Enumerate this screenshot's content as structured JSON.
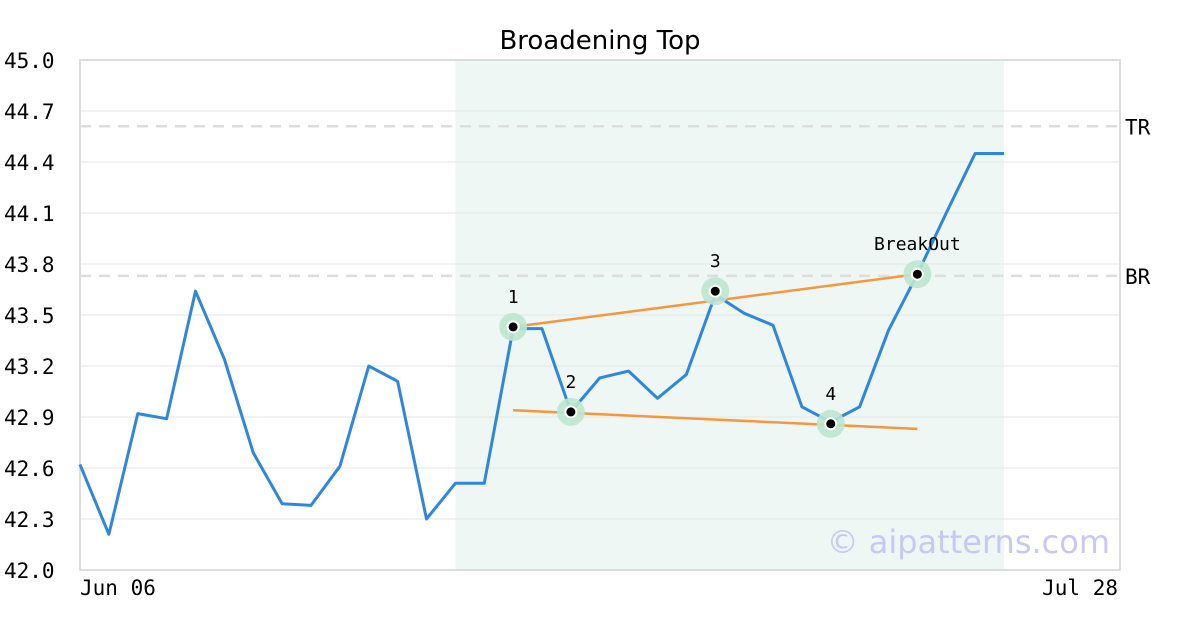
{
  "chart_data": {
    "type": "line",
    "title": "Broadening Top",
    "ylim": [
      42.0,
      45.0
    ],
    "yticks": [
      "42.0",
      "42.3",
      "42.6",
      "42.9",
      "43.2",
      "43.5",
      "43.8",
      "44.1",
      "44.4",
      "44.7",
      "45.0"
    ],
    "xtick_labels": [
      "Jun 06",
      "Jul 28"
    ],
    "grid": true,
    "series": [
      {
        "values": [
          42.62,
          42.21,
          42.92,
          42.89,
          43.64,
          43.24,
          42.69,
          42.39,
          42.38,
          42.61,
          43.2,
          43.11,
          42.3,
          42.51,
          42.51,
          43.42,
          43.42,
          42.93,
          43.13,
          43.17,
          43.01,
          43.15,
          43.62,
          43.51,
          43.44,
          42.96,
          42.87,
          42.96,
          43.41,
          43.74,
          44.1,
          44.45,
          44.45
        ]
      }
    ],
    "pattern_region": {
      "start_index": 13,
      "end_index": 32
    },
    "levels": [
      {
        "label": "TR",
        "value": 44.61
      },
      {
        "label": "BR",
        "value": 43.73
      }
    ],
    "pivots": [
      {
        "label": "1",
        "index": 15,
        "value": 43.43
      },
      {
        "label": "2",
        "index": 17,
        "value": 42.93
      },
      {
        "label": "3",
        "index": 22,
        "value": 43.64
      },
      {
        "label": "4",
        "index": 26,
        "value": 42.86
      },
      {
        "label": "BreakOut",
        "index": 29,
        "value": 43.74
      }
    ],
    "trendlines": [
      {
        "from": {
          "index": 15,
          "value": 43.43
        },
        "to": {
          "index": 29,
          "value": 43.74
        }
      },
      {
        "from": {
          "index": 15,
          "value": 42.94
        },
        "to": {
          "index": 29,
          "value": 42.83
        }
      }
    ],
    "watermark": "© aipatterns.com",
    "colors": {
      "line": "#2e86de",
      "trend": "#f5973d",
      "region": "#eef7f3",
      "marker_halo": "#bde6cf",
      "level": "#dddddd",
      "grid": "#e6e6e6",
      "frame": "#dddddd",
      "watermark": "#c8c8f4"
    }
  }
}
